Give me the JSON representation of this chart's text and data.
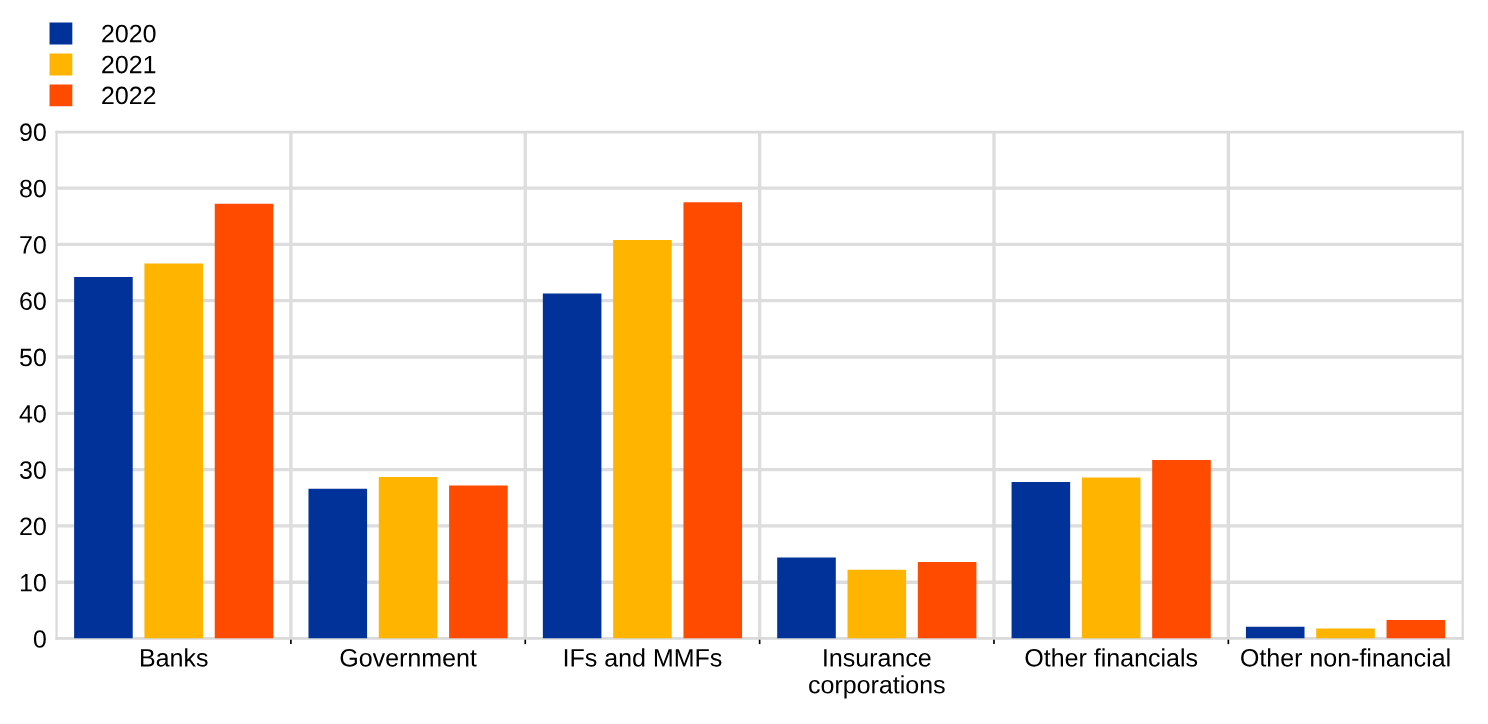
{
  "chart_data": {
    "type": "bar",
    "categories": [
      "Banks",
      "Government",
      "IFs and MMFs",
      "Insurance\ncorporations",
      "Other financials",
      "Other non-financial"
    ],
    "series": [
      {
        "name": "2020",
        "color": "#003299",
        "values": [
          64.2,
          26.6,
          61.3,
          14.4,
          27.8,
          2.1
        ]
      },
      {
        "name": "2021",
        "color": "#ffb400",
        "values": [
          66.6,
          28.7,
          70.8,
          12.2,
          28.6,
          1.8
        ]
      },
      {
        "name": "2022",
        "color": "#ff4b00",
        "values": [
          77.2,
          27.2,
          77.5,
          13.6,
          31.7,
          3.3
        ]
      }
    ],
    "ylim": [
      0,
      90
    ],
    "yticks": [
      0,
      10,
      20,
      30,
      40,
      50,
      60,
      70,
      80,
      90
    ],
    "grid": true,
    "legend": "top left"
  }
}
